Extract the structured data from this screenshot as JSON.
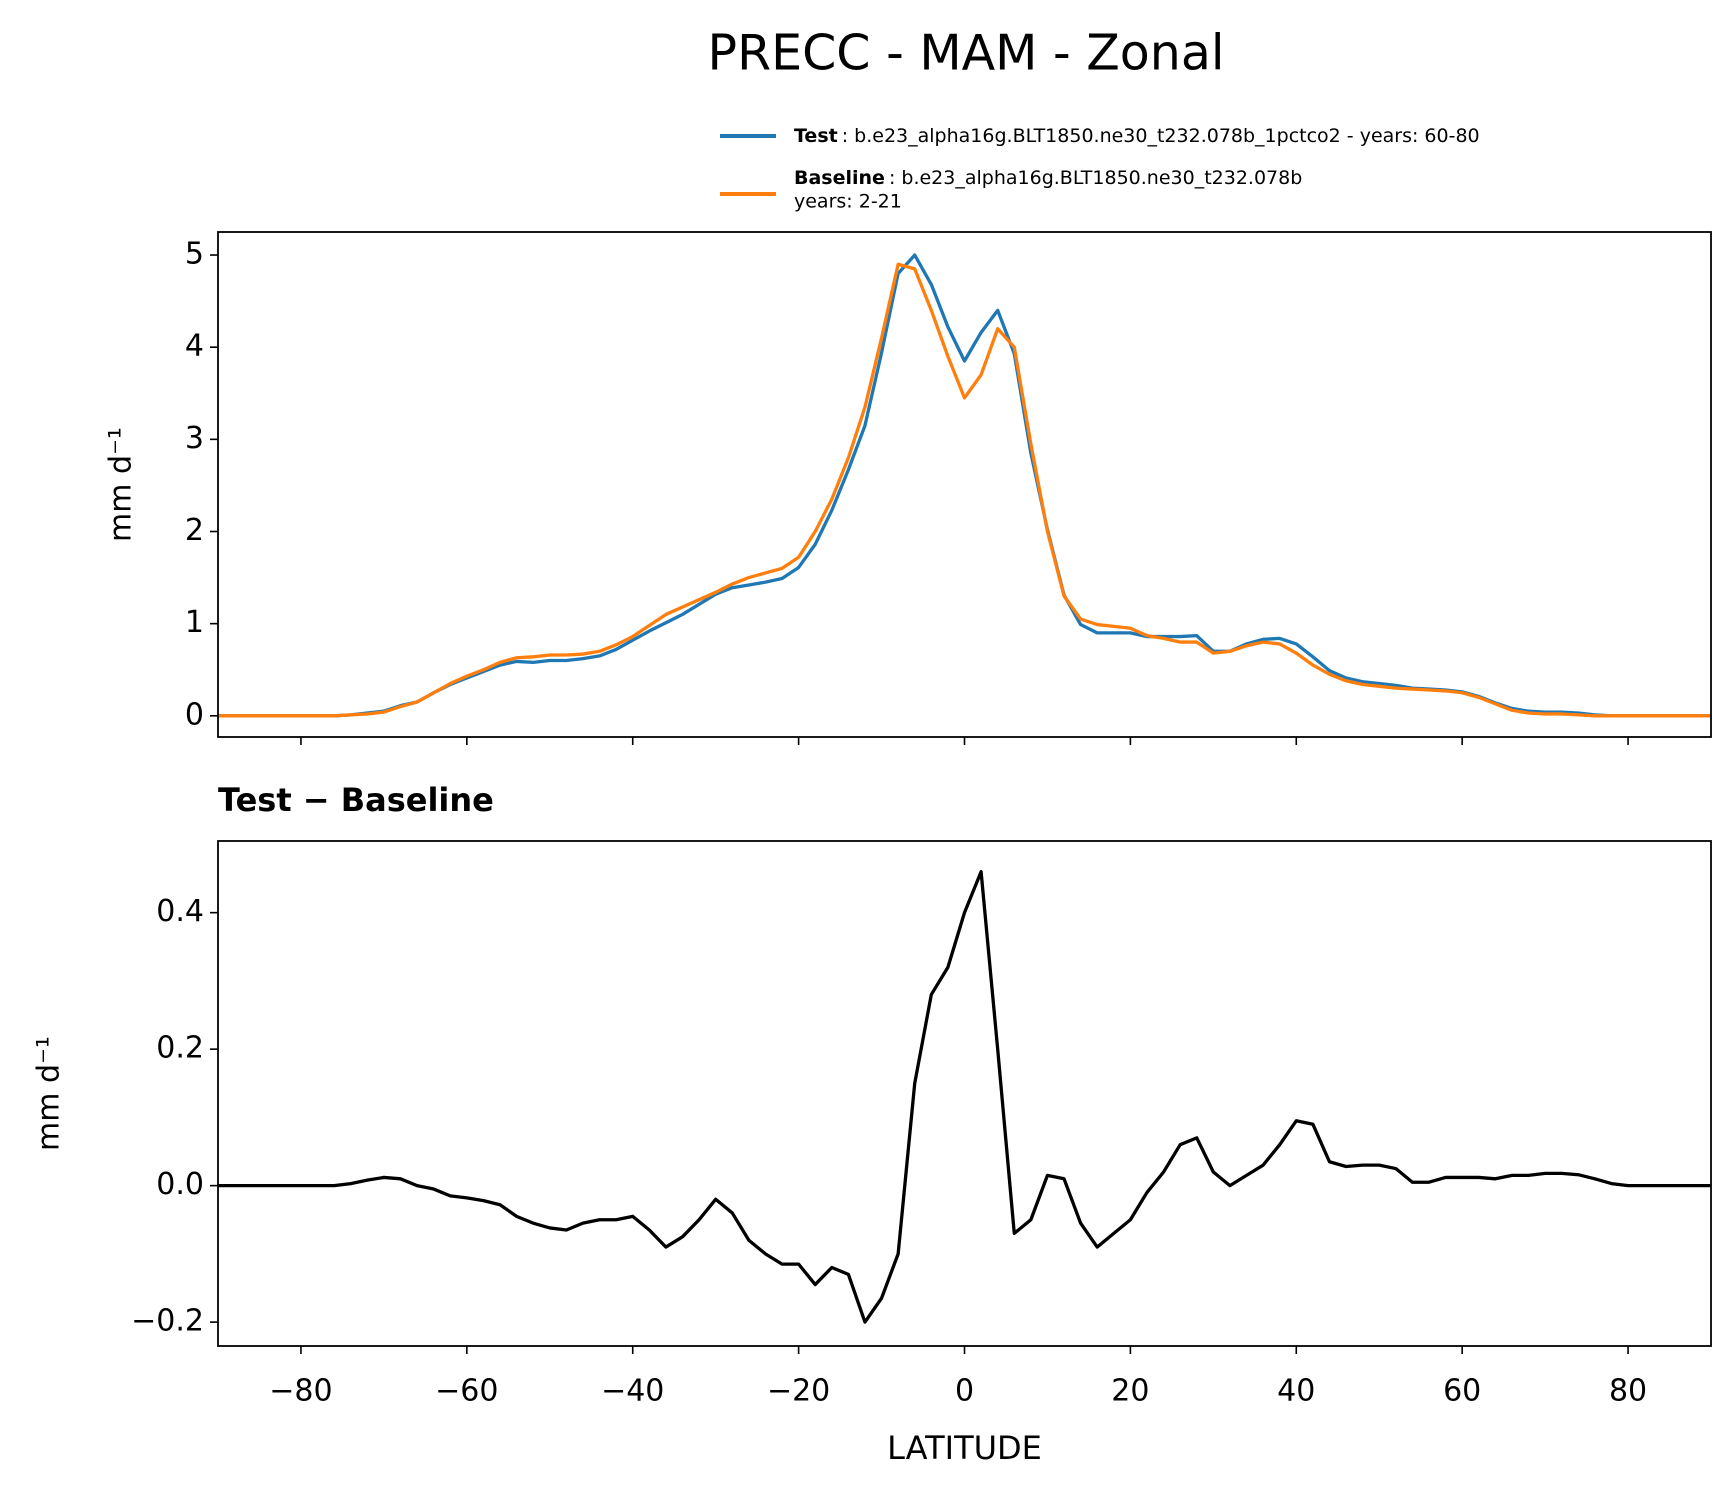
{
  "chart_data": [
    {
      "type": "line",
      "title": "PRECC - MAM - Zonal",
      "ylabel": "mm d⁻¹",
      "x": [
        -90,
        -88,
        -86,
        -84,
        -82,
        -80,
        -78,
        -76,
        -74,
        -72,
        -70,
        -68,
        -66,
        -64,
        -62,
        -60,
        -58,
        -56,
        -54,
        -52,
        -50,
        -48,
        -46,
        -44,
        -42,
        -40,
        -38,
        -36,
        -34,
        -32,
        -30,
        -28,
        -26,
        -24,
        -22,
        -20,
        -18,
        -16,
        -14,
        -12,
        -10,
        -8,
        -6,
        -4,
        -2,
        0,
        2,
        4,
        6,
        8,
        10,
        12,
        14,
        16,
        18,
        20,
        22,
        24,
        26,
        28,
        30,
        32,
        34,
        36,
        38,
        40,
        42,
        44,
        46,
        48,
        50,
        52,
        54,
        56,
        58,
        60,
        62,
        64,
        66,
        68,
        70,
        72,
        74,
        76,
        78,
        80,
        82,
        84,
        86,
        88,
        90
      ],
      "series": [
        {
          "name": "Test",
          "description": [
            ": b.e23_alpha16g.BLT1850.ne30_t232.078b_1pctco2 - years: 60-80"
          ],
          "color": "#1f77b4",
          "values": [
            0,
            0,
            0,
            0,
            0,
            0,
            0,
            0,
            0.01,
            0.03,
            0.05,
            0.11,
            0.15,
            0.25,
            0.34,
            0.41,
            0.48,
            0.55,
            0.59,
            0.58,
            0.6,
            0.6,
            0.62,
            0.65,
            0.72,
            0.82,
            0.92,
            1.01,
            1.1,
            1.21,
            1.32,
            1.39,
            1.42,
            1.45,
            1.49,
            1.61,
            1.86,
            2.23,
            2.67,
            3.15,
            3.94,
            4.8,
            5.0,
            4.68,
            4.22,
            3.85,
            4.16,
            4.4,
            3.93,
            2.85,
            2.02,
            1.31,
            0.99,
            0.9,
            0.9,
            0.9,
            0.86,
            0.86,
            0.86,
            0.87,
            0.7,
            0.7,
            0.78,
            0.83,
            0.84,
            0.78,
            0.64,
            0.49,
            0.41,
            0.37,
            0.35,
            0.33,
            0.3,
            0.29,
            0.28,
            0.26,
            0.21,
            0.14,
            0.08,
            0.05,
            0.04,
            0.04,
            0.03,
            0.01,
            0,
            0,
            0,
            0,
            0,
            0,
            0
          ]
        },
        {
          "name": "Baseline",
          "description": [
            ": b.e23_alpha16g.BLT1850.ne30_t232.078b",
            "years: 2-21"
          ],
          "color": "#ff7f0e",
          "values": [
            0,
            0,
            0,
            0,
            0,
            0,
            0,
            0,
            0.01,
            0.02,
            0.04,
            0.1,
            0.15,
            0.25,
            0.35,
            0.43,
            0.5,
            0.58,
            0.63,
            0.64,
            0.66,
            0.66,
            0.67,
            0.7,
            0.77,
            0.86,
            0.98,
            1.1,
            1.18,
            1.26,
            1.34,
            1.43,
            1.5,
            1.55,
            1.6,
            1.72,
            2.0,
            2.35,
            2.8,
            3.35,
            4.1,
            4.9,
            4.85,
            4.4,
            3.9,
            3.45,
            3.7,
            4.2,
            4.0,
            2.95,
            2.0,
            1.3,
            1.05,
            0.99,
            0.97,
            0.95,
            0.87,
            0.84,
            0.8,
            0.8,
            0.68,
            0.7,
            0.76,
            0.8,
            0.78,
            0.68,
            0.55,
            0.45,
            0.38,
            0.34,
            0.32,
            0.3,
            0.29,
            0.28,
            0.27,
            0.25,
            0.2,
            0.13,
            0.06,
            0.03,
            0.02,
            0.02,
            0.01,
            0,
            0,
            0,
            0,
            0,
            0,
            0,
            0
          ]
        }
      ],
      "xlim": [
        -90,
        90
      ],
      "xticks": [
        -80,
        -60,
        -40,
        -20,
        0,
        20,
        40,
        60,
        80
      ],
      "ylim": [
        -0.23,
        5.25
      ],
      "yticks": [
        0,
        1,
        2,
        3,
        4,
        5
      ],
      "legend": "upper right"
    },
    {
      "type": "line",
      "title": "Test − Baseline",
      "ylabel": "mm d⁻¹",
      "xlabel": "LATITUDE",
      "x": [
        -90,
        -88,
        -86,
        -84,
        -82,
        -80,
        -78,
        -76,
        -74,
        -72,
        -70,
        -68,
        -66,
        -64,
        -62,
        -60,
        -58,
        -56,
        -54,
        -52,
        -50,
        -48,
        -46,
        -44,
        -42,
        -40,
        -38,
        -36,
        -34,
        -32,
        -30,
        -28,
        -26,
        -24,
        -22,
        -20,
        -18,
        -16,
        -14,
        -12,
        -10,
        -8,
        -6,
        -4,
        -2,
        0,
        2,
        4,
        6,
        8,
        10,
        12,
        14,
        16,
        18,
        20,
        22,
        24,
        26,
        28,
        30,
        32,
        34,
        36,
        38,
        40,
        42,
        44,
        46,
        48,
        50,
        52,
        54,
        56,
        58,
        60,
        62,
        64,
        66,
        68,
        70,
        72,
        74,
        76,
        78,
        80,
        82,
        84,
        86,
        88,
        90
      ],
      "series": [
        {
          "name": "Test − Baseline",
          "color": "#000000",
          "values": [
            0,
            0,
            0,
            0,
            0,
            0,
            0,
            0,
            0.003,
            0.008,
            0.012,
            0.01,
            0,
            -0.005,
            -0.015,
            -0.018,
            -0.022,
            -0.028,
            -0.045,
            -0.055,
            -0.062,
            -0.065,
            -0.055,
            -0.05,
            -0.05,
            -0.045,
            -0.065,
            -0.09,
            -0.075,
            -0.05,
            -0.02,
            -0.04,
            -0.08,
            -0.1,
            -0.115,
            -0.115,
            -0.145,
            -0.12,
            -0.13,
            -0.2,
            -0.165,
            -0.1,
            0.15,
            0.28,
            0.32,
            0.4,
            0.46,
            0.2,
            -0.07,
            -0.05,
            0.015,
            0.01,
            -0.055,
            -0.09,
            -0.07,
            -0.05,
            -0.01,
            0.02,
            0.06,
            0.07,
            0.02,
            0,
            0.015,
            0.03,
            0.06,
            0.095,
            0.09,
            0.035,
            0.028,
            0.03,
            0.03,
            0.025,
            0.005,
            0.005,
            0.012,
            0.012,
            0.012,
            0.01,
            0.015,
            0.015,
            0.018,
            0.018,
            0.016,
            0.01,
            0.003,
            0,
            0,
            0,
            0,
            0,
            0
          ]
        }
      ],
      "xlim": [
        -90,
        90
      ],
      "xticks": [
        {
          "value": -80,
          "label": "−80"
        },
        {
          "value": -60,
          "label": "−60"
        },
        {
          "value": -40,
          "label": "−40"
        },
        {
          "value": -20,
          "label": "−20"
        },
        0,
        20,
        40,
        60,
        80
      ],
      "ylim": [
        -0.235,
        0.505
      ],
      "yticks": [
        {
          "value": -0.2,
          "label": "−0.2"
        },
        {
          "value": 0,
          "label": "0.0"
        },
        0.2,
        0.4
      ]
    }
  ]
}
